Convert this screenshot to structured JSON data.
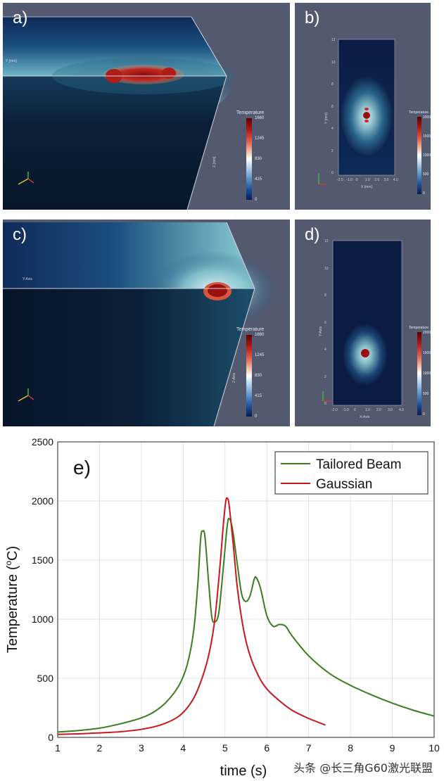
{
  "panels": {
    "a": {
      "label": "a)",
      "axis_y_label": "Y [mm]",
      "axis_z_label": "Z [mm]",
      "cbar": {
        "title": "Temperature",
        "ticks": [
          "1660",
          "1245",
          "830",
          "415",
          "0"
        ]
      }
    },
    "b": {
      "label": "b)",
      "axis_y_label": "Y [mm]",
      "axis_x_label": "X [mm]",
      "y_ticks": [
        "12",
        "10",
        "8",
        "6",
        "4",
        "2",
        "0"
      ],
      "x_ticks": [
        "-2.0",
        "-1.0",
        "0",
        "1.0",
        "2.0",
        "3.0",
        "4.0"
      ],
      "cbar": {
        "title": "Temperature",
        "ticks": [
          "2000",
          "1500",
          "1000",
          "500",
          "0"
        ]
      }
    },
    "c": {
      "label": "c)",
      "axis_y_label": "Y-Axis",
      "axis_z_label": "Z-Axis",
      "cbar": {
        "title": "Temperature",
        "ticks": [
          "1660",
          "1245",
          "830",
          "415",
          "0"
        ]
      }
    },
    "d": {
      "label": "d)",
      "axis_y_label": "Y-Axis",
      "axis_x_label": "X-Axis",
      "y_ticks": [
        "12",
        "10",
        "8",
        "6",
        "4",
        "2",
        "0"
      ],
      "x_ticks": [
        "-2.0",
        "-1.0",
        "0",
        "1.0",
        "2.0",
        "3.0",
        "4.0"
      ],
      "cbar": {
        "title": "Temperature",
        "ticks": [
          "2000",
          "1500",
          "1000",
          "500",
          "0"
        ]
      }
    }
  },
  "chart_data": {
    "type": "line",
    "panel_label": "e)",
    "xlabel": "time (s)",
    "ylabel": "Temperature (°C)",
    "ylabel_main": "Temperature (",
    "ylabel_sup": "o",
    "ylabel_tail": "C)",
    "xlim": [
      1,
      10
    ],
    "ylim": [
      0,
      2500
    ],
    "x_ticks": [
      1,
      2,
      3,
      4,
      5,
      6,
      7,
      8,
      9,
      10
    ],
    "y_ticks": [
      0,
      500,
      1000,
      1500,
      2000,
      2500
    ],
    "grid": true,
    "legend_position": "top-right",
    "series": [
      {
        "name": "Tailored Beam",
        "color": "#3a7d1f",
        "points": [
          [
            1,
            45
          ],
          [
            1.5,
            58
          ],
          [
            2,
            78
          ],
          [
            2.5,
            115
          ],
          [
            3,
            165
          ],
          [
            3.3,
            215
          ],
          [
            3.6,
            300
          ],
          [
            3.9,
            440
          ],
          [
            4.1,
            620
          ],
          [
            4.25,
            900
          ],
          [
            4.35,
            1300
          ],
          [
            4.42,
            1690
          ],
          [
            4.47,
            1745
          ],
          [
            4.52,
            1700
          ],
          [
            4.6,
            1350
          ],
          [
            4.68,
            1030
          ],
          [
            4.75,
            975
          ],
          [
            4.85,
            1050
          ],
          [
            4.95,
            1400
          ],
          [
            5.05,
            1780
          ],
          [
            5.1,
            1850
          ],
          [
            5.18,
            1760
          ],
          [
            5.3,
            1450
          ],
          [
            5.4,
            1210
          ],
          [
            5.5,
            1150
          ],
          [
            5.6,
            1200
          ],
          [
            5.7,
            1340
          ],
          [
            5.75,
            1350
          ],
          [
            5.85,
            1260
          ],
          [
            6.0,
            1030
          ],
          [
            6.15,
            940
          ],
          [
            6.3,
            955
          ],
          [
            6.45,
            940
          ],
          [
            6.6,
            860
          ],
          [
            7,
            690
          ],
          [
            7.5,
            540
          ],
          [
            8,
            440
          ],
          [
            8.5,
            360
          ],
          [
            9,
            290
          ],
          [
            9.5,
            230
          ],
          [
            10,
            180
          ]
        ]
      },
      {
        "name": "Gaussian",
        "color": "#c8181c",
        "points": [
          [
            1,
            25
          ],
          [
            1.5,
            30
          ],
          [
            2,
            38
          ],
          [
            2.5,
            48
          ],
          [
            3,
            68
          ],
          [
            3.5,
            110
          ],
          [
            3.9,
            180
          ],
          [
            4.2,
            300
          ],
          [
            4.4,
            450
          ],
          [
            4.6,
            680
          ],
          [
            4.75,
            980
          ],
          [
            4.88,
            1450
          ],
          [
            4.96,
            1800
          ],
          [
            5.02,
            2000
          ],
          [
            5.06,
            2020
          ],
          [
            5.1,
            1960
          ],
          [
            5.2,
            1620
          ],
          [
            5.3,
            1250
          ],
          [
            5.45,
            900
          ],
          [
            5.6,
            690
          ],
          [
            5.8,
            520
          ],
          [
            6.0,
            410
          ],
          [
            6.3,
            310
          ],
          [
            6.6,
            230
          ],
          [
            7.0,
            160
          ],
          [
            7.4,
            105
          ]
        ]
      }
    ]
  },
  "watermark": "头条 @长三角G60激光联盟"
}
